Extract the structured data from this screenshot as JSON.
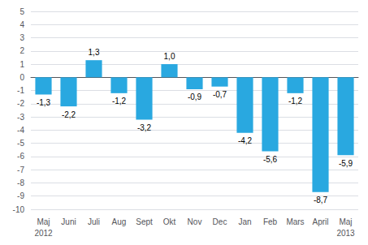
{
  "chart_data": {
    "type": "bar",
    "categories": [
      "Maj",
      "Juni",
      "Juli",
      "Aug",
      "Sept",
      "Okt",
      "Nov",
      "Dec",
      "Jan",
      "Feb",
      "Mars",
      "April",
      "Maj"
    ],
    "values": [
      -1.3,
      -2.2,
      1.3,
      -1.2,
      -3.2,
      1.0,
      -0.9,
      -0.7,
      -4.2,
      -5.6,
      -1.2,
      -8.7,
      -5.9
    ],
    "value_labels": [
      "-1,3",
      "-2,2",
      "1,3",
      "-1,2",
      "-3,2",
      "1,0",
      "-0,9",
      "-0,7",
      "-4,2",
      "-5,6",
      "-1,2",
      "-8,7",
      "-5,9"
    ],
    "data_labels": true,
    "color": "#29a8e0",
    "ylim": [
      -10,
      5
    ],
    "yticks": [
      -10,
      -9,
      -8,
      -7,
      -6,
      -5,
      -4,
      -3,
      -2,
      -1,
      0,
      1,
      2,
      3,
      4,
      5
    ],
    "grid": true,
    "annotations": [
      {
        "text": "2012",
        "category_index": 0
      },
      {
        "text": "2013",
        "category_index": 12
      }
    ]
  }
}
